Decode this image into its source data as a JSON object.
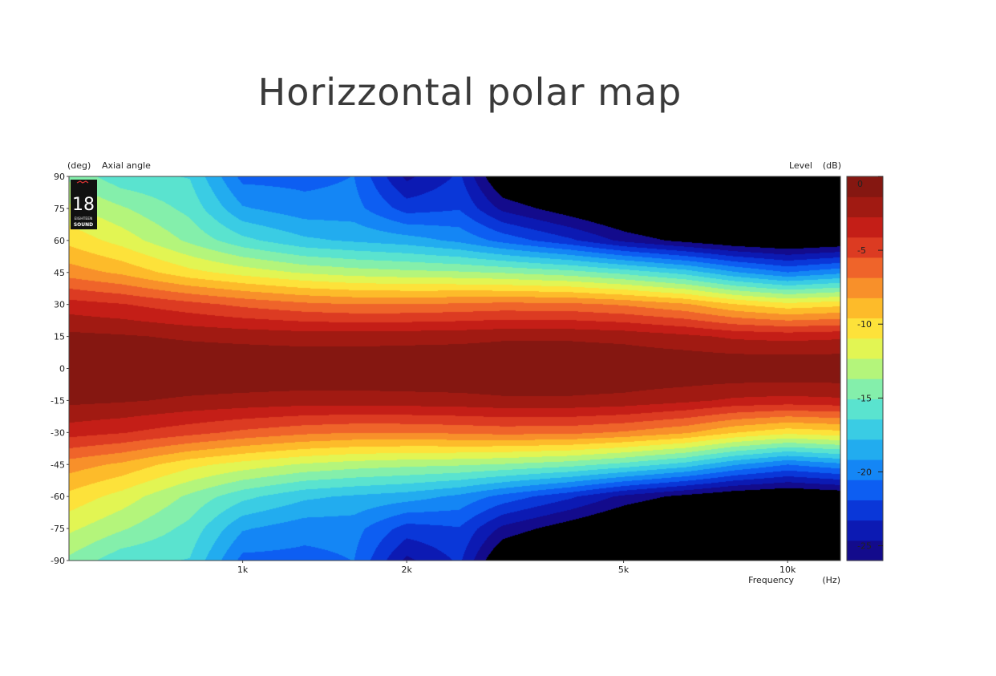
{
  "title": "Horizzontal polar map",
  "logo": {
    "number": "18",
    "line1": "EIGHTEEN",
    "line2": "SOUND"
  },
  "chart_data": {
    "type": "heatmap",
    "title": "Horizzontal polar map",
    "y_unit": "(deg)",
    "y_label": "Axial angle",
    "x_label": "Frequency",
    "x_unit": "(Hz)",
    "colorbar_label": "Level",
    "colorbar_unit": "(dB)",
    "x_scale": "log",
    "xlim": [
      480,
      12500
    ],
    "ylim": [
      -90,
      90
    ],
    "x_ticks": [
      {
        "value": 1000,
        "label": "1k"
      },
      {
        "value": 2000,
        "label": "2k"
      },
      {
        "value": 5000,
        "label": "5k"
      },
      {
        "value": 10000,
        "label": "10k"
      }
    ],
    "y_ticks": [
      90,
      75,
      60,
      45,
      30,
      15,
      0,
      -15,
      -30,
      -45,
      -60,
      -75,
      -90
    ],
    "y_tick_labels": [
      "90",
      "75",
      "60",
      "45",
      "30",
      "15",
      "0",
      "-15",
      "-30",
      "-45",
      "-60",
      "-75",
      "-90"
    ],
    "colorbar_range": [
      -26,
      0
    ],
    "colorbar_ticks": [
      "0",
      "-5",
      "-10",
      "-15",
      "-20",
      "-25"
    ],
    "colorbar_tick_values": [
      0,
      -5,
      -10,
      -15,
      -20,
      -25
    ],
    "beamwidth_profile": {
      "description_free": true,
      "frequency_hz": [
        480,
        600,
        800,
        1000,
        1300,
        1600,
        2000,
        2500,
        3000,
        4000,
        5000,
        6500,
        8000,
        10000,
        12500
      ],
      "level_db_at_15deg": [
        -1.0,
        -1.2,
        -1.6,
        -1.8,
        -2.0,
        -2.0,
        -1.9,
        -1.8,
        -1.6,
        -1.6,
        -1.8,
        -2.4,
        -3.0,
        -3.2,
        -3.0
      ],
      "level_db_at_30deg": [
        -3.5,
        -4.0,
        -5.0,
        -5.8,
        -6.5,
        -6.8,
        -6.8,
        -6.6,
        -6.4,
        -6.5,
        -7.0,
        -8.0,
        -9.5,
        -10.5,
        -10.0
      ],
      "level_db_at_45deg": [
        -7.5,
        -8.5,
        -10.5,
        -11.5,
        -12.5,
        -13.0,
        -13.3,
        -13.5,
        -13.8,
        -14.5,
        -15.5,
        -17.0,
        -19.0,
        -20.5,
        -19.5
      ],
      "level_db_at_60deg": [
        -10.0,
        -11.5,
        -14.0,
        -16.0,
        -17.5,
        -18.0,
        -18.5,
        -19.5,
        -21.0,
        -23.0,
        -25.0,
        -26.5,
        -27.5,
        -28.0,
        -27.5
      ],
      "level_db_at_75deg": [
        -12.0,
        -13.5,
        -15.5,
        -19.0,
        -20.0,
        -20.0,
        -22.5,
        -22.0,
        -25.0,
        -27.0,
        -28.5,
        -30.0,
        -31.0,
        -32.0,
        -31.0
      ],
      "level_db_at_90deg": [
        -14.0,
        -16.0,
        -16.5,
        -21.0,
        -21.0,
        -20.5,
        -25.0,
        -23.0,
        -28.0,
        -30.0,
        -32.0,
        -33.0,
        -34.0,
        -35.0,
        -34.0
      ]
    }
  },
  "colors": {
    "palette": [
      "#130b8c",
      "#0c1ab3",
      "#0a37d8",
      "#0d5ef2",
      "#1486f5",
      "#22acef",
      "#3acce4",
      "#5ae3cf",
      "#84efab",
      "#b4f57b",
      "#e2f553",
      "#fde23a",
      "#fdbb2a",
      "#f8902a",
      "#ef642a",
      "#dc3b22",
      "#c41e17",
      "#a11a12",
      "#851711"
    ],
    "below_range": "#000000",
    "text": "#222222"
  }
}
